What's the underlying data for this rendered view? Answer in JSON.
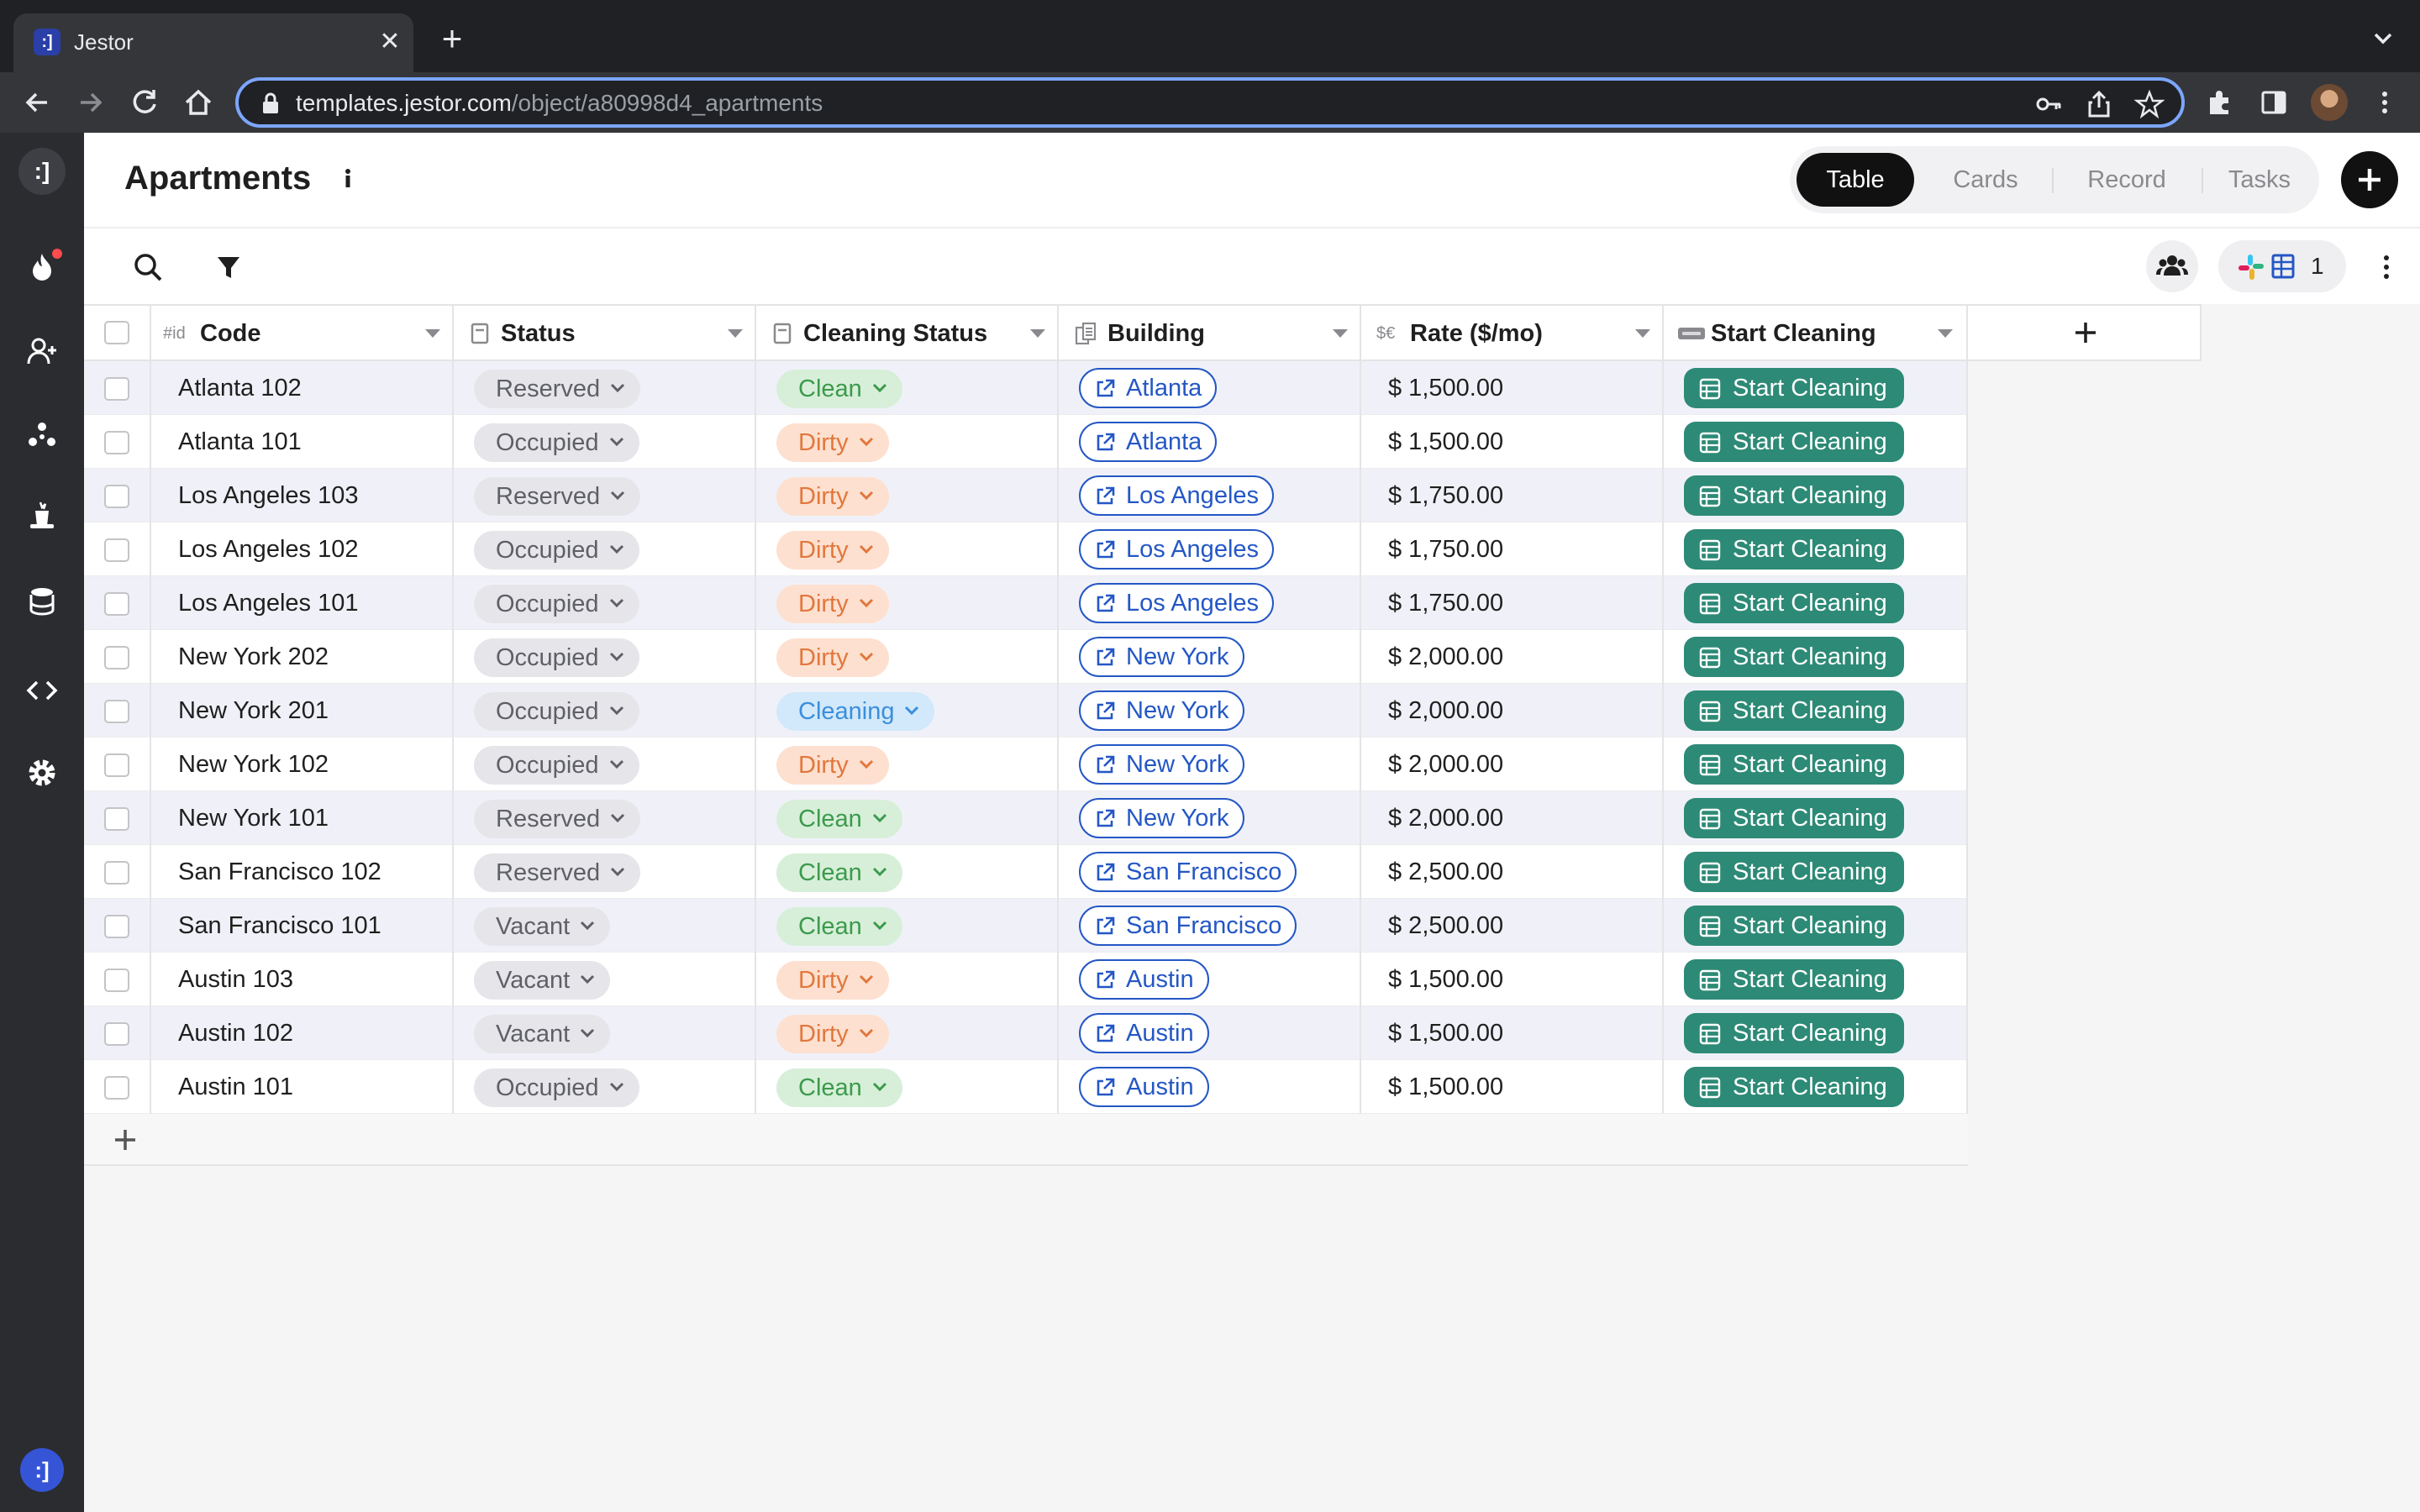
{
  "browser": {
    "tab_title": "Jestor",
    "favicon_text": ":]",
    "url_host": "templates.jestor.com",
    "url_path": "/object/a80998d4_apartments"
  },
  "sidebar": {
    "logo_text": ":]",
    "bottom_text": ":]",
    "icons": [
      "fire-icon",
      "add-user-icon",
      "nodes-icon",
      "magic-hat-icon",
      "database-icon",
      "code-icon",
      "gear-icon"
    ]
  },
  "header": {
    "title": "Apartments",
    "views": [
      {
        "label": "Table",
        "active": true
      },
      {
        "label": "Cards",
        "active": false
      },
      {
        "label": "Record",
        "active": false
      },
      {
        "label": "Tasks",
        "active": false
      }
    ]
  },
  "toolbar": {
    "integrations_count": "1"
  },
  "table": {
    "columns": [
      {
        "type_label": "#id",
        "label": "Code"
      },
      {
        "type_label": "",
        "label": "Status"
      },
      {
        "type_label": "",
        "label": "Cleaning Status"
      },
      {
        "type_label": "",
        "label": "Building"
      },
      {
        "type_label": "$€",
        "label": "Rate ($/mo)"
      },
      {
        "type_label": "",
        "label": "Start Cleaning"
      }
    ],
    "rows": [
      {
        "code": "Atlanta 102",
        "status": "Reserved",
        "cleaning": "Clean",
        "building": "Atlanta",
        "rate": "$ 1,500.00",
        "action": "Start Cleaning"
      },
      {
        "code": "Atlanta 101",
        "status": "Occupied",
        "cleaning": "Dirty",
        "building": "Atlanta",
        "rate": "$ 1,500.00",
        "action": "Start Cleaning"
      },
      {
        "code": "Los Angeles 103",
        "status": "Reserved",
        "cleaning": "Dirty",
        "building": "Los Angeles",
        "rate": "$ 1,750.00",
        "action": "Start Cleaning"
      },
      {
        "code": "Los Angeles 102",
        "status": "Occupied",
        "cleaning": "Dirty",
        "building": "Los Angeles",
        "rate": "$ 1,750.00",
        "action": "Start Cleaning"
      },
      {
        "code": "Los Angeles 101",
        "status": "Occupied",
        "cleaning": "Dirty",
        "building": "Los Angeles",
        "rate": "$ 1,750.00",
        "action": "Start Cleaning"
      },
      {
        "code": "New York 202",
        "status": "Occupied",
        "cleaning": "Dirty",
        "building": "New York",
        "rate": "$ 2,000.00",
        "action": "Start Cleaning"
      },
      {
        "code": "New York 201",
        "status": "Occupied",
        "cleaning": "Cleaning",
        "building": "New York",
        "rate": "$ 2,000.00",
        "action": "Start Cleaning"
      },
      {
        "code": "New York 102",
        "status": "Occupied",
        "cleaning": "Dirty",
        "building": "New York",
        "rate": "$ 2,000.00",
        "action": "Start Cleaning"
      },
      {
        "code": "New York 101",
        "status": "Reserved",
        "cleaning": "Clean",
        "building": "New York",
        "rate": "$ 2,000.00",
        "action": "Start Cleaning"
      },
      {
        "code": "San Francisco 102",
        "status": "Reserved",
        "cleaning": "Clean",
        "building": "San Francisco",
        "rate": "$ 2,500.00",
        "action": "Start Cleaning"
      },
      {
        "code": "San Francisco 101",
        "status": "Vacant",
        "cleaning": "Clean",
        "building": "San Francisco",
        "rate": "$ 2,500.00",
        "action": "Start Cleaning"
      },
      {
        "code": "Austin 103",
        "status": "Vacant",
        "cleaning": "Dirty",
        "building": "Austin",
        "rate": "$ 1,500.00",
        "action": "Start Cleaning"
      },
      {
        "code": "Austin 102",
        "status": "Vacant",
        "cleaning": "Dirty",
        "building": "Austin",
        "rate": "$ 1,500.00",
        "action": "Start Cleaning"
      },
      {
        "code": "Austin 101",
        "status": "Occupied",
        "cleaning": "Clean",
        "building": "Austin",
        "rate": "$ 1,500.00",
        "action": "Start Cleaning"
      }
    ]
  },
  "colors": {
    "status_bg": "#e6e6ea",
    "status_fg": "#5f6066",
    "clean_bg": "#d7efd9",
    "clean_fg": "#3c9a4c",
    "dirty_bg": "#fde0cf",
    "dirty_fg": "#e2773d",
    "cleaning_bg": "#d2e8fb",
    "cleaning_fg": "#3a8fdc",
    "link": "#2457c5",
    "action_bg": "#2d8a76"
  }
}
